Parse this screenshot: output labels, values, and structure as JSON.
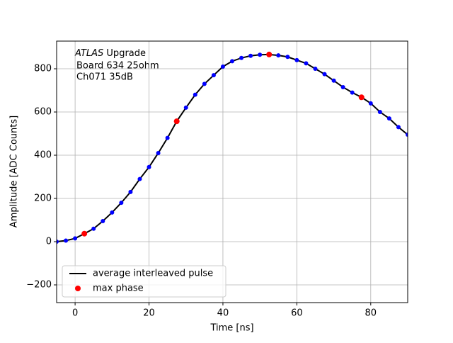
{
  "chart_data": {
    "type": "line",
    "xlabel": "Time [ns]",
    "ylabel": "Amplitude [ADC Counts]",
    "annotation": {
      "italic": "ATLAS",
      "rest": "Upgrade",
      "lines": [
        "Board 634 25ohm",
        "Ch071 35dB"
      ]
    },
    "xlim": [
      -5,
      90
    ],
    "xticks": [
      0,
      20,
      40,
      60,
      80
    ],
    "ylim": [
      -282,
      928
    ],
    "yticks": [
      {
        "value": -200,
        "label": "−200"
      },
      0,
      200,
      400,
      600,
      800
    ],
    "grid": true,
    "legend": "lower left",
    "series": [
      {
        "name": "average interleaved pulse",
        "color": "#000000",
        "marker_color": "#0000ff",
        "style": "line",
        "x": [
          -5,
          -2.5,
          0,
          2.5,
          5,
          7.5,
          10,
          12.5,
          15,
          17.5,
          20,
          22.5,
          25,
          27.5,
          30,
          32.5,
          35,
          37.5,
          40,
          42.5,
          45,
          47.5,
          50,
          52.5,
          55,
          57.5,
          60,
          62.5,
          65,
          67.5,
          70,
          72.5,
          75,
          77.5,
          80,
          82.5,
          85,
          87.5,
          90
        ],
        "values": [
          0,
          5,
          15,
          37,
          60,
          95,
          135,
          180,
          230,
          290,
          345,
          410,
          480,
          557,
          620,
          680,
          730,
          770,
          810,
          835,
          850,
          860,
          865,
          866,
          862,
          855,
          840,
          825,
          800,
          775,
          745,
          715,
          690,
          668,
          640,
          600,
          570,
          530,
          495
        ]
      },
      {
        "name": "max phase",
        "color": "#ff0000",
        "style": "scatter",
        "x": [
          2.5,
          27.5,
          52.5,
          77.5
        ],
        "values": [
          37,
          557,
          866,
          668
        ]
      }
    ]
  }
}
